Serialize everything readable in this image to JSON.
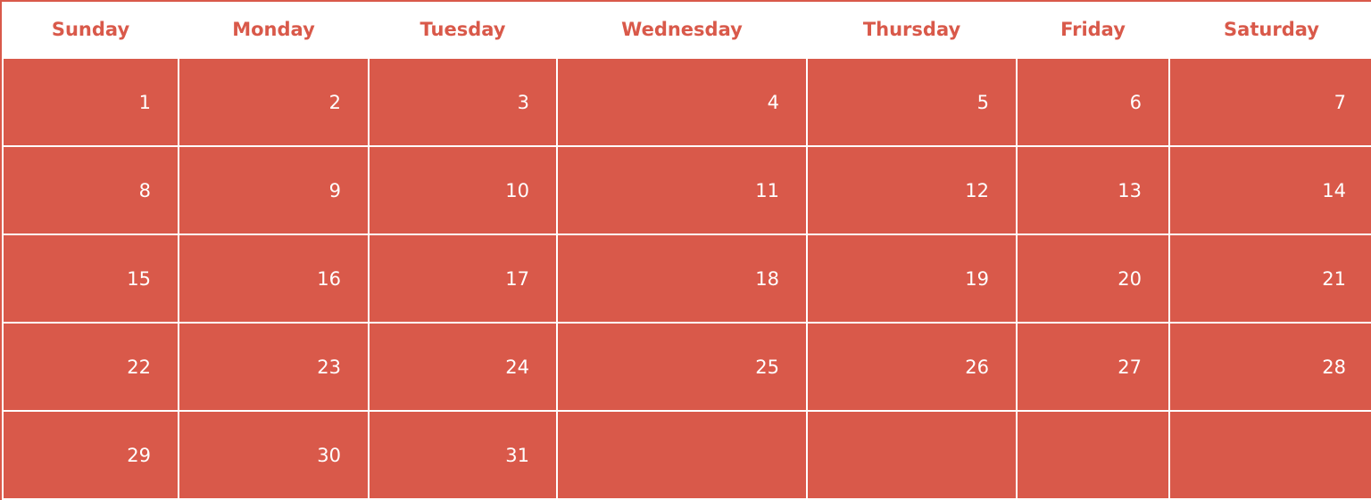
{
  "calendar": {
    "weekdays": [
      "Sunday",
      "Monday",
      "Tuesday",
      "Wednesday",
      "Thursday",
      "Friday",
      "Saturday"
    ],
    "weeks": [
      [
        "1",
        "2",
        "3",
        "4",
        "5",
        "6",
        "7"
      ],
      [
        "8",
        "9",
        "10",
        "11",
        "12",
        "13",
        "14"
      ],
      [
        "15",
        "16",
        "17",
        "18",
        "19",
        "20",
        "21"
      ],
      [
        "22",
        "23",
        "24",
        "25",
        "26",
        "27",
        "28"
      ],
      [
        "29",
        "30",
        "31",
        "",
        "",
        "",
        ""
      ]
    ]
  },
  "colors": {
    "accent": "#d9594a",
    "day_text": "#ffffff",
    "background": "#ffffff"
  }
}
